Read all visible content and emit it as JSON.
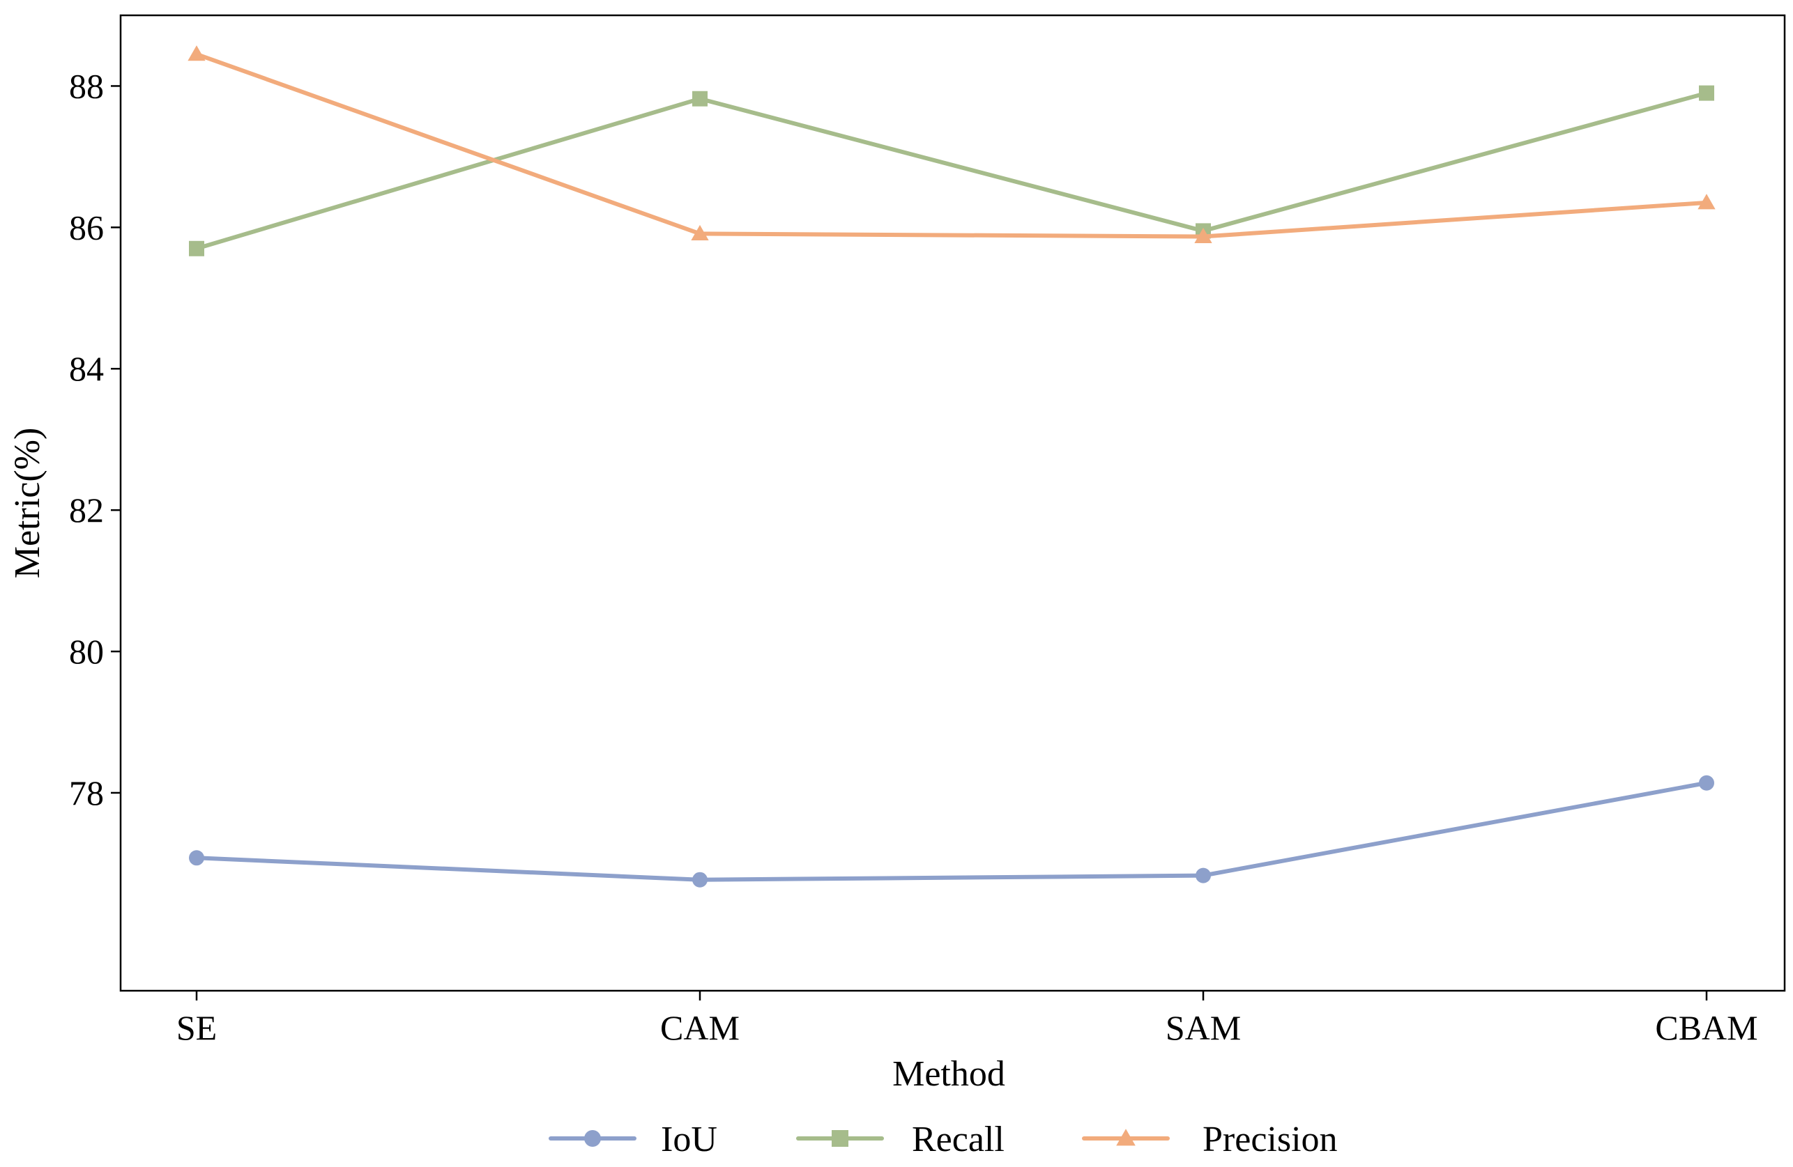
{
  "chart_data": {
    "type": "line",
    "categories": [
      "SE",
      "CAM",
      "SAM",
      "CBAM"
    ],
    "xlabel": "Method",
    "ylabel": "Metric(%)",
    "ylim": [
      75.2,
      89.0
    ],
    "yticks": [
      78,
      80,
      82,
      84,
      86,
      88
    ],
    "grid": false,
    "legend_position": "bottom-center",
    "series": [
      {
        "name": "IoU",
        "marker": "circle",
        "color": "#8da0cb",
        "values": [
          77.08,
          76.77,
          76.83,
          78.14
        ]
      },
      {
        "name": "Recall",
        "marker": "square",
        "color": "#a6bc8b",
        "values": [
          85.7,
          87.82,
          85.95,
          87.9
        ]
      },
      {
        "name": "Precision",
        "marker": "triangle",
        "color": "#f2ab7c",
        "values": [
          88.45,
          85.91,
          85.87,
          86.35
        ]
      }
    ]
  }
}
